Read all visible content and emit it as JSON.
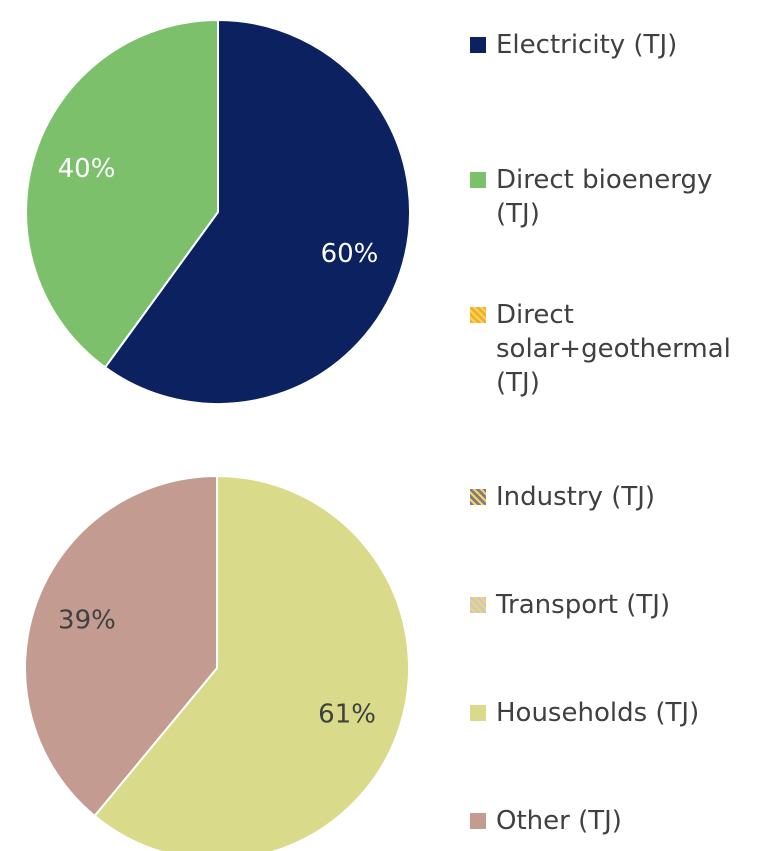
{
  "chart_data": [
    {
      "type": "pie",
      "categories": [
        "Electricity (TJ)",
        "Direct bioenergy (TJ)",
        "Direct solar+geothermal (TJ)"
      ],
      "values": [
        60,
        40,
        0
      ],
      "value_labels": [
        "60%",
        "40%",
        null
      ],
      "colors": [
        "#0b2160",
        "#7dc06c",
        "#f2b01e"
      ],
      "label_colors": [
        "#ffffff",
        "#ffffff",
        "#ffffff"
      ]
    },
    {
      "type": "pie",
      "categories": [
        "Industry (TJ)",
        "Transport (TJ)",
        "Households (TJ)",
        "Other (TJ)"
      ],
      "values": [
        0,
        0,
        61,
        39
      ],
      "value_labels": [
        null,
        null,
        "61%",
        "39%"
      ],
      "colors": [
        "#7f7f7f",
        "#c9c9c9",
        "#d9db8a",
        "#c49b91"
      ],
      "label_colors": [
        "#404040",
        "#404040",
        "#404040",
        "#404040"
      ]
    }
  ]
}
